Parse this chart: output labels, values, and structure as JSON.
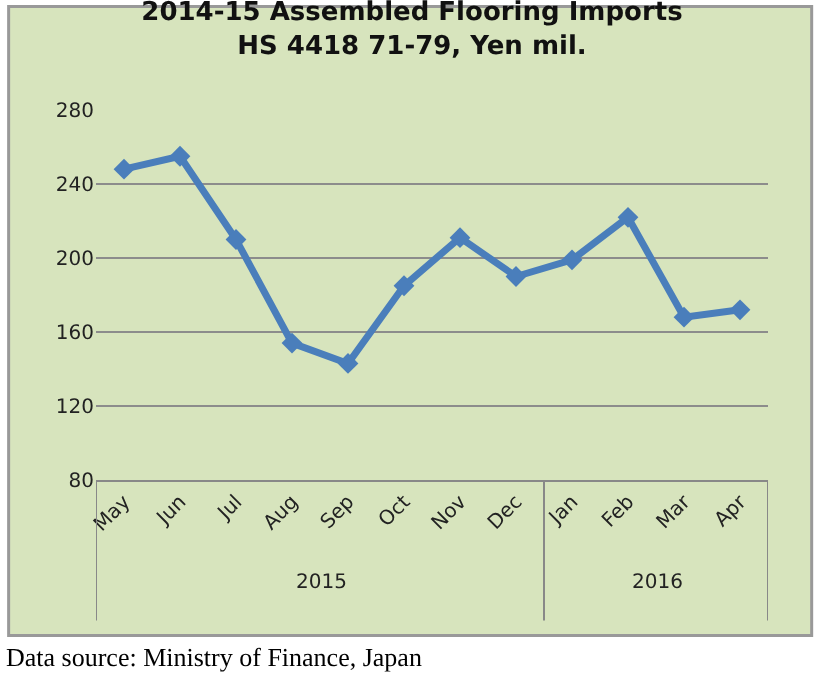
{
  "chart_data": {
    "type": "line",
    "title": "2014-15 Assembled Flooring Imports",
    "subtitle": "HS 4418 71-79, Yen mil.",
    "categories": [
      "May",
      "Jun",
      "Jul",
      "Aug",
      "Sep",
      "Oct",
      "Nov",
      "Dec",
      "Jan",
      "Feb",
      "Mar",
      "Apr"
    ],
    "series": [
      {
        "color": "#4a7ebb",
        "values": [
          248,
          255,
          210,
          154,
          143,
          185,
          211,
          190,
          199,
          222,
          168,
          172
        ]
      }
    ],
    "ylim": [
      80,
      280
    ],
    "yticks": [
      80,
      120,
      160,
      200,
      240,
      280
    ],
    "grid": "y",
    "marker": "diamond",
    "line_style": "solid",
    "annotations": [
      "2015",
      "2016",
      "Data source: Ministry of Finance, Japan"
    ]
  }
}
